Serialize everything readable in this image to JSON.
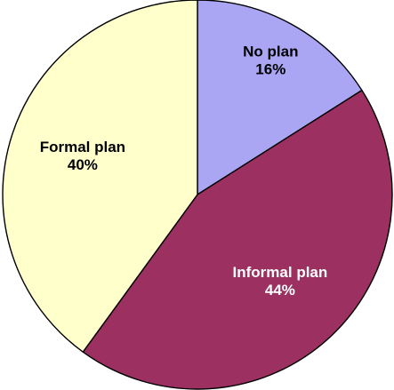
{
  "chart_data": {
    "type": "pie",
    "start_angle_deg": 0,
    "direction": "clockwise",
    "slices": [
      {
        "label": "No plan",
        "value": 16,
        "value_label": "16%",
        "color": "#aaa6f4",
        "label_color": "#000000"
      },
      {
        "label": "Informal plan",
        "value": 44,
        "value_label": "44%",
        "color": "#9c3061",
        "label_color": "#ffffff"
      },
      {
        "label": "Formal plan",
        "value": 40,
        "value_label": "40%",
        "color": "#ffffcc",
        "label_color": "#000000"
      }
    ]
  }
}
